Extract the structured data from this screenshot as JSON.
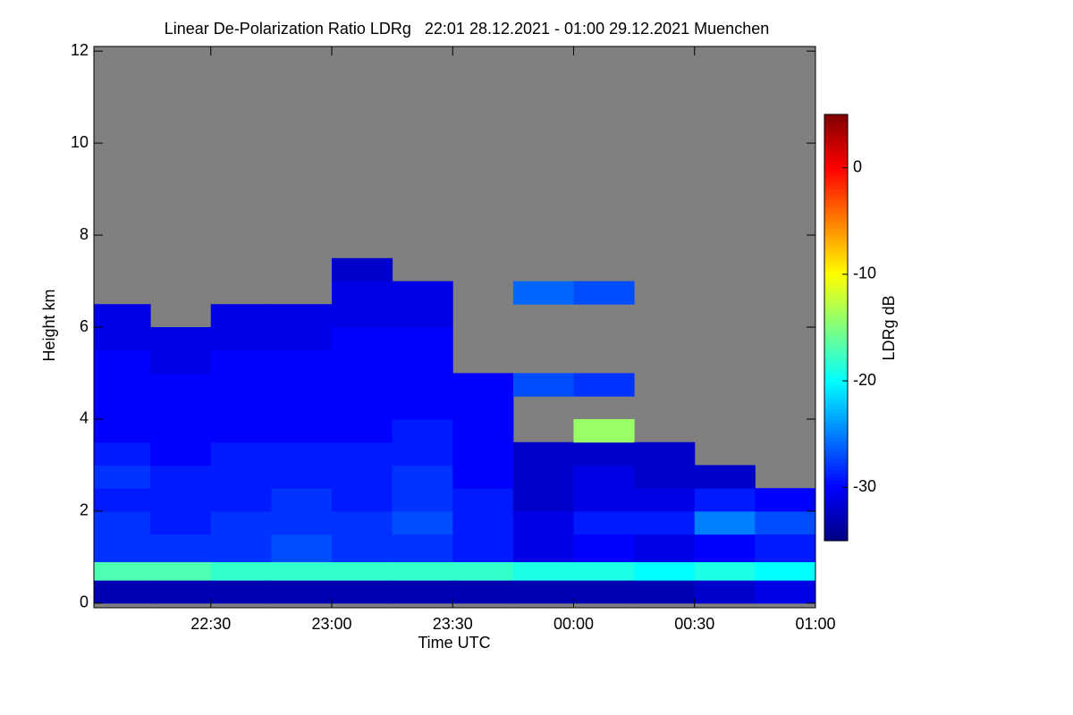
{
  "chart_data": {
    "type": "heatmap",
    "title": "Linear De-Polarization Ratio LDRg   22:01 28.12.2021 - 01:00 29.12.2021 Muenchen",
    "x_label": "Time UTC",
    "y_label": "Height km",
    "colorbar_label": "LDRg dB",
    "x_edges": [
      1321,
      1335,
      1350,
      1365,
      1380,
      1395,
      1410,
      1425,
      1440,
      1455,
      1470,
      1485,
      1500
    ],
    "y_edges": [
      0,
      0.5,
      0.9,
      1.5,
      2,
      2.5,
      3,
      3.5,
      4,
      4.5,
      5,
      5.5,
      6,
      6.5,
      7,
      7.5
    ],
    "z": [
      [
        -33,
        -17,
        -28,
        -28,
        -29,
        -28,
        -29,
        -30,
        -30,
        -30,
        -30,
        -31,
        -31,
        null,
        null
      ],
      [
        -33,
        -17,
        -28,
        -29,
        -29,
        -29,
        -30,
        -30,
        -30,
        -30,
        -31,
        -31,
        null,
        null,
        null
      ],
      [
        -33,
        -18,
        -28,
        -28,
        -29,
        -29,
        -29,
        -30,
        -30,
        -30,
        -30,
        -31,
        -31,
        null,
        null
      ],
      [
        -33,
        -18,
        -27,
        -28,
        -28,
        -29,
        -29,
        -30,
        -30,
        -30,
        -30,
        -31,
        -31,
        null,
        null
      ],
      [
        -33,
        -18,
        -28,
        -28,
        -29,
        -29,
        -29,
        -30,
        -30,
        -30,
        -30,
        -30,
        -31,
        -31,
        -32
      ],
      [
        -33,
        -18,
        -28,
        -27,
        -28,
        -28,
        -29,
        -29,
        -30,
        -30,
        -30,
        -30,
        -31,
        -31,
        null
      ],
      [
        -33,
        -18,
        -29,
        -29,
        -29,
        -30,
        -30,
        -30,
        -30,
        -30,
        null,
        null,
        null,
        null,
        null
      ],
      [
        -33,
        -19,
        -31,
        -31,
        -32,
        -32,
        -32,
        null,
        null,
        -27,
        null,
        null,
        null,
        -26,
        null
      ],
      [
        -33,
        -19,
        -30,
        -29,
        -31,
        -31,
        -32,
        -14,
        null,
        -28,
        null,
        null,
        null,
        -27,
        null
      ],
      [
        -33,
        -20,
        -31,
        -29,
        -31,
        -32,
        -32,
        null,
        null,
        null,
        null,
        null,
        null,
        null,
        null
      ],
      [
        -32,
        -19,
        -30,
        -25,
        -29,
        -32,
        null,
        null,
        null,
        null,
        null,
        null,
        null,
        null,
        null
      ],
      [
        -31,
        -20,
        -29,
        -27,
        -30,
        null,
        null,
        null,
        null,
        null,
        null,
        null,
        null,
        null,
        null
      ]
    ],
    "xlim": [
      1321,
      1500
    ],
    "xticks": [
      {
        "value": 1350,
        "label": "22:30"
      },
      {
        "value": 1380,
        "label": "23:00"
      },
      {
        "value": 1410,
        "label": "23:30"
      },
      {
        "value": 1440,
        "label": "00:00"
      },
      {
        "value": 1470,
        "label": "00:30"
      },
      {
        "value": 1500,
        "label": "01:00"
      }
    ],
    "ylim": [
      -0.1,
      12.1
    ],
    "yticks": [
      0,
      2,
      4,
      6,
      8,
      10,
      12
    ],
    "clim": [
      -35,
      5
    ],
    "cticks": [
      0,
      -10,
      -20,
      -30
    ],
    "colormap": "jet",
    "missing_color": "#808080"
  }
}
